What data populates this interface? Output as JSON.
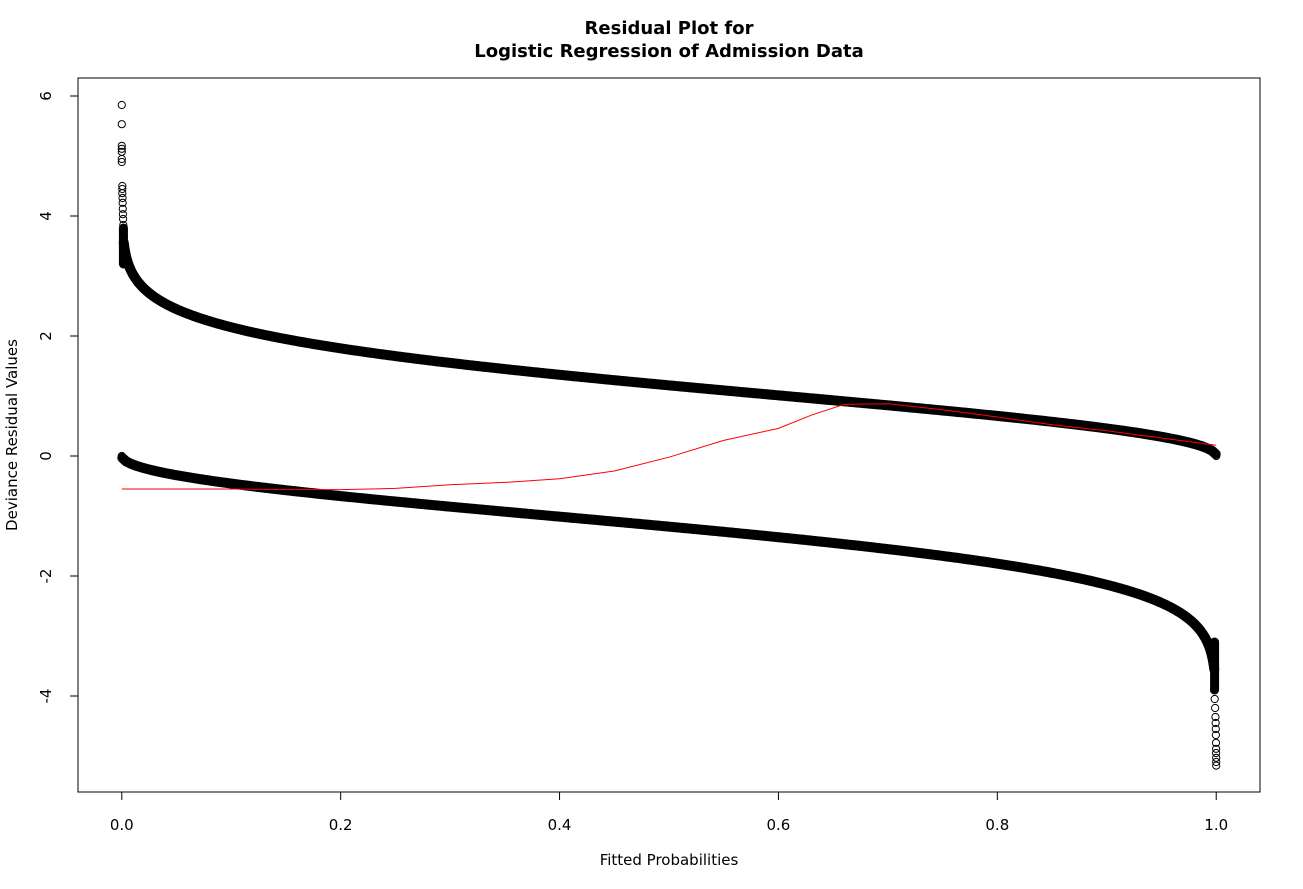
{
  "chart_data": {
    "type": "scatter",
    "title": "Residual Plot for",
    "subtitle": "Logistic Regression of Admission Data",
    "xlabel": "Fitted Probabilities",
    "ylabel": "Deviance Residual Values",
    "xlim": [
      -0.04,
      1.04
    ],
    "ylim": [
      -5.6,
      6.3
    ],
    "xticks": [
      0.0,
      0.2,
      0.4,
      0.6,
      0.8,
      1.0
    ],
    "xtick_labels": [
      "0.0",
      "0.2",
      "0.4",
      "0.6",
      "0.8",
      "1.0"
    ],
    "yticks": [
      -4,
      -2,
      0,
      2,
      4,
      6
    ],
    "ytick_labels": [
      "-4",
      "-2",
      "0",
      "2",
      "4",
      "6"
    ],
    "grid": false,
    "series": [
      {
        "marker": "open-circle",
        "color": "#000000",
        "points": [
          [
            0.0,
            5.85
          ],
          [
            0.0,
            5.53
          ],
          [
            0.0,
            5.17
          ],
          [
            0.0,
            5.12
          ],
          [
            0.0,
            5.07
          ],
          [
            0.0,
            4.95
          ],
          [
            0.0,
            4.9
          ],
          [
            0.0005,
            4.5
          ],
          [
            0.0005,
            4.45
          ],
          [
            0.0005,
            4.38
          ],
          [
            0.0007,
            4.3
          ],
          [
            0.0008,
            4.22
          ],
          [
            0.0009,
            4.12
          ],
          [
            0.001,
            4.03
          ],
          [
            0.0012,
            3.95
          ],
          [
            0.0014,
            3.85
          ],
          [
            0.0017,
            3.75
          ],
          [
            0.002,
            3.65
          ],
          [
            0.0,
            0.0
          ],
          [
            0.0005,
            -0.03
          ],
          [
            0.001,
            -0.045
          ],
          [
            0.0015,
            -0.055
          ],
          [
            1.0,
            0.0
          ],
          [
            0.9995,
            0.03
          ],
          [
            0.999,
            0.045
          ],
          [
            0.9985,
            0.055
          ],
          [
            1.0,
            -5.16
          ],
          [
            1.0,
            -5.1
          ],
          [
            1.0,
            -5.03
          ],
          [
            0.9999,
            -4.95
          ],
          [
            0.9999,
            -4.88
          ],
          [
            0.9998,
            -4.78
          ],
          [
            0.9997,
            -4.65
          ],
          [
            0.9996,
            -4.55
          ],
          [
            0.9995,
            -4.45
          ],
          [
            0.9993,
            -4.35
          ],
          [
            0.999,
            -4.2
          ],
          [
            0.9986,
            -4.05
          ],
          [
            0.998,
            -3.9
          ]
        ]
      },
      {
        "type": "line",
        "color": "#ff0000",
        "points": [
          [
            0.0,
            -0.55
          ],
          [
            0.05,
            -0.55
          ],
          [
            0.1,
            -0.55
          ],
          [
            0.15,
            -0.56
          ],
          [
            0.2,
            -0.56
          ],
          [
            0.25,
            -0.54
          ],
          [
            0.3,
            -0.48
          ],
          [
            0.35,
            -0.44
          ],
          [
            0.4,
            -0.38
          ],
          [
            0.45,
            -0.25
          ],
          [
            0.5,
            -0.02
          ],
          [
            0.55,
            0.26
          ],
          [
            0.6,
            0.46
          ],
          [
            0.63,
            0.68
          ],
          [
            0.66,
            0.86
          ],
          [
            0.7,
            0.87
          ],
          [
            0.75,
            0.77
          ],
          [
            0.8,
            0.65
          ],
          [
            0.85,
            0.52
          ],
          [
            0.9,
            0.42
          ],
          [
            0.95,
            0.3
          ],
          [
            1.0,
            0.18
          ]
        ]
      }
    ]
  }
}
